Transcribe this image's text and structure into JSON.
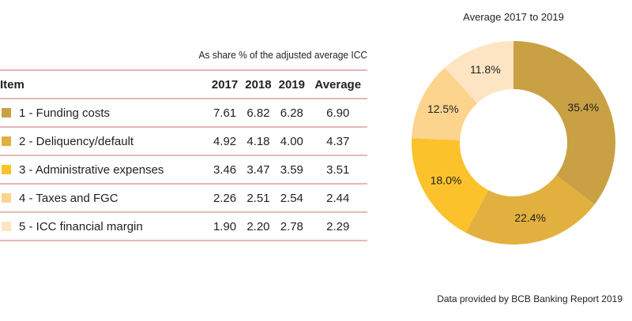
{
  "table": {
    "subtitle": "As share % of the adjusted average ICC",
    "headers": [
      "Item",
      "2017",
      "2018",
      "2019",
      "Average"
    ],
    "rows": [
      {
        "label": "1 - Funding costs",
        "color": "#C9A043",
        "values": [
          "7.61",
          "6.82",
          "6.28",
          "6.90"
        ]
      },
      {
        "label": "2 - Deliquency/default",
        "color": "#E2B03F",
        "values": [
          "4.92",
          "4.18",
          "4.00",
          "4.37"
        ]
      },
      {
        "label": "3 - Administrative expenses",
        "color": "#FBC22B",
        "values": [
          "3.46",
          "3.47",
          "3.59",
          "3.51"
        ]
      },
      {
        "label": "4 - Taxes and FGC",
        "color": "#FCD48E",
        "values": [
          "2.26",
          "2.51",
          "2.54",
          "2.44"
        ]
      },
      {
        "label": "5 - ICC financial margin",
        "color": "#FDE5C4",
        "values": [
          "1.90",
          "2.20",
          "2.78",
          "2.29"
        ]
      }
    ]
  },
  "chart_data": {
    "type": "pie",
    "donut": true,
    "title": "Average 2017 to 2019",
    "categories": [
      "1 - Funding costs",
      "2 - Deliquency/default",
      "3 - Administrative expenses",
      "4 - Taxes and FGC",
      "5 - ICC financial margin"
    ],
    "values": [
      35.4,
      22.4,
      18.0,
      12.5,
      11.8
    ],
    "labels": [
      "35.4%",
      "22.4%",
      "18.0%",
      "12.5%",
      "11.8%"
    ],
    "colors": [
      "#C9A043",
      "#E2B03F",
      "#FBC22B",
      "#FCD48E",
      "#FDE5C4"
    ]
  },
  "footer": "Data provided by BCB Banking Report 2019"
}
